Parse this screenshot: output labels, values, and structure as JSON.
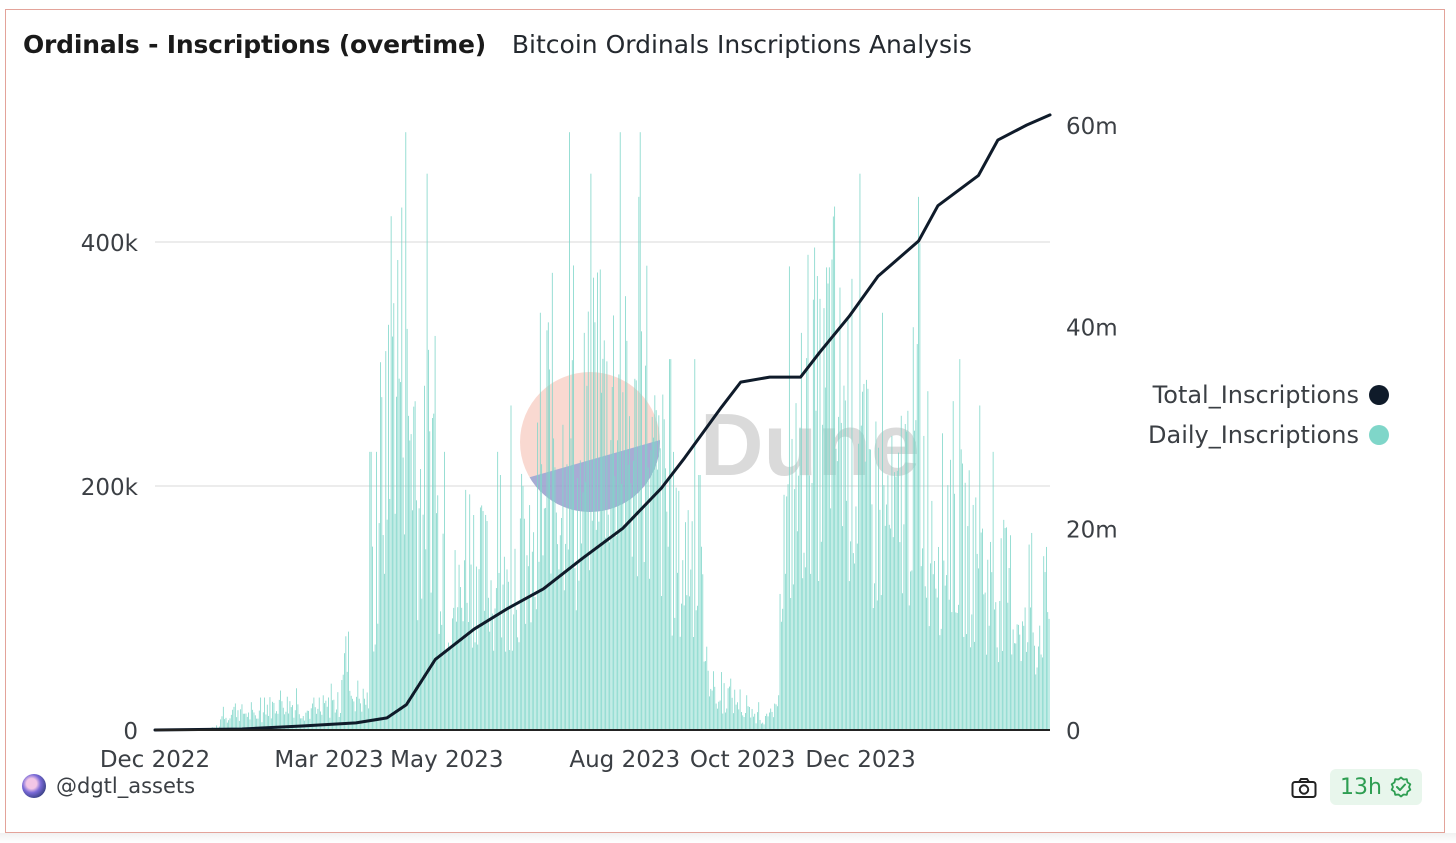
{
  "header": {
    "title": "Ordinals - Inscriptions (overtime)",
    "subtitle": "Bitcoin Ordinals Inscriptions Analysis"
  },
  "watermark": "Dune",
  "footer": {
    "author": "@dgtl_assets",
    "badge": "13h",
    "icons": [
      "camera-icon",
      "check-badge-icon",
      "avatar"
    ]
  },
  "colors": {
    "bars": "#7fd6c9",
    "line": "#0f1b2a",
    "grid": "#ececec",
    "accent_green": "#2e9e52"
  },
  "chart_data": {
    "type": "bar+line",
    "title": "Ordinals - Inscriptions (overtime)",
    "x_tick_labels": [
      "Dec 2022",
      "Mar 2023",
      "May 2023",
      "Aug 2023",
      "Oct 2023",
      "Dec 2023"
    ],
    "y_left": {
      "label": "Daily_Inscriptions",
      "ticks": [
        "0",
        "200k",
        "400k"
      ],
      "range": [
        0,
        500000
      ]
    },
    "y_right": {
      "label": "Total_Inscriptions",
      "ticks": [
        "0",
        "20m",
        "40m",
        "60m"
      ],
      "range": [
        0,
        60000000
      ]
    },
    "legend": [
      {
        "name": "Total_Inscriptions",
        "color": "#0f1b2a"
      },
      {
        "name": "Daily_Inscriptions",
        "color": "#7fd6c9"
      }
    ],
    "legend_position": "right",
    "grid": true,
    "series": [
      {
        "name": "Daily_Inscriptions",
        "type": "bar",
        "weekly_avg_daily_values": [
          0,
          0,
          0,
          0,
          0,
          1000,
          2000,
          10000,
          18000,
          15000,
          12000,
          14000,
          20000,
          25000,
          22000,
          18000,
          16000,
          14000,
          20000,
          22000,
          60000,
          30000,
          26000,
          120000,
          220000,
          330000,
          320000,
          260000,
          200000,
          240000,
          170000,
          120000,
          110000,
          160000,
          150000,
          130000,
          120000,
          110000,
          140000,
          150000,
          130000,
          180000,
          260000,
          220000,
          280000,
          190000,
          240000,
          300000,
          270000,
          280000,
          250000,
          230000,
          290000,
          210000,
          200000,
          160000,
          140000,
          160000,
          110000,
          50000,
          25000,
          30000,
          25000,
          15000,
          12000,
          10000,
          15000,
          160000,
          200000,
          240000,
          280000,
          260000,
          310000,
          270000,
          260000,
          240000,
          200000,
          190000,
          180000,
          170000,
          210000,
          230000,
          210000,
          180000,
          170000,
          190000,
          160000,
          150000,
          140000,
          120000,
          120000,
          120000,
          100000,
          80000,
          85000,
          105000
        ]
      },
      {
        "name": "Total_Inscriptions",
        "type": "line",
        "points": [
          [
            "2022-12-01",
            0
          ],
          [
            "2023-01-15",
            100000
          ],
          [
            "2023-02-15",
            400000
          ],
          [
            "2023-03-15",
            700000
          ],
          [
            "2023-03-31",
            1200000
          ],
          [
            "2023-04-10",
            2500000
          ],
          [
            "2023-04-25",
            7000000
          ],
          [
            "2023-05-15",
            10000000
          ],
          [
            "2023-06-01",
            12000000
          ],
          [
            "2023-06-20",
            14000000
          ],
          [
            "2023-07-10",
            17000000
          ],
          [
            "2023-07-31",
            20000000
          ],
          [
            "2023-08-20",
            24000000
          ],
          [
            "2023-09-01",
            27000000
          ],
          [
            "2023-09-20",
            32000000
          ],
          [
            "2023-09-30",
            34500000
          ],
          [
            "2023-10-15",
            35000000
          ],
          [
            "2023-10-31",
            35000000
          ],
          [
            "2023-11-10",
            37500000
          ],
          [
            "2023-11-25",
            41000000
          ],
          [
            "2023-12-10",
            45000000
          ],
          [
            "2023-12-31",
            48500000
          ],
          [
            "2024-01-10",
            52000000
          ],
          [
            "2024-01-31",
            55000000
          ],
          [
            "2024-02-10",
            58500000
          ],
          [
            "2024-02-25",
            60000000
          ],
          [
            "2024-03-08",
            61000000
          ]
        ]
      }
    ]
  }
}
